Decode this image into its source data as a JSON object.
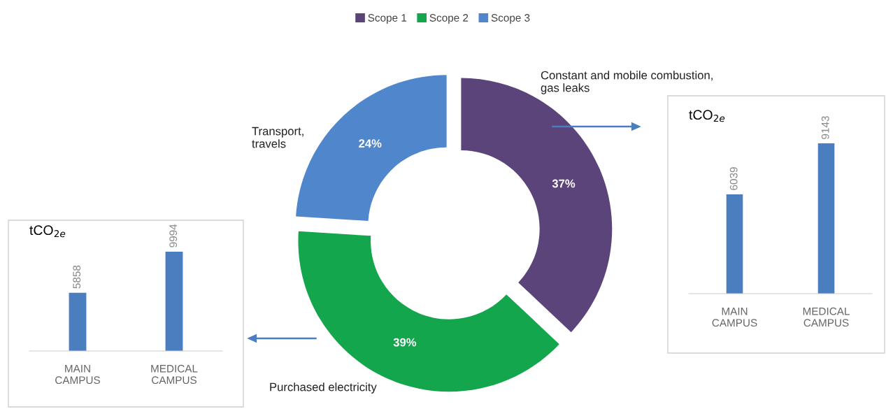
{
  "chart_data": [
    {
      "type": "donut",
      "categories": [
        "Scope 1",
        "Scope 2",
        "Scope 3"
      ],
      "values": [
        37,
        39,
        24
      ],
      "colors": [
        "#5b4479",
        "#13a64c",
        "#4f86cc"
      ],
      "value_labels": [
        "37%",
        "39%",
        "24%"
      ],
      "legend": "top",
      "annotations": [
        "Constant and mobile combustion,\ngas leaks",
        "Purchased electricity",
        "Transport,\ntravels"
      ]
    },
    {
      "type": "bar",
      "title": "tCO$_{2e}$",
      "categories": [
        "MAIN CAMPUS",
        "MEDICAL CAMPUS"
      ],
      "values": [
        6039,
        9143
      ],
      "color": "#4a7ebf",
      "data_labels": true
    },
    {
      "type": "bar",
      "title": "tCO$_{2e}$",
      "categories": [
        "MAIN CAMPUS",
        "MEDICAL CAMPUS"
      ],
      "values": [
        5858,
        9994
      ],
      "color": "#4a7ebf",
      "data_labels": true
    }
  ]
}
